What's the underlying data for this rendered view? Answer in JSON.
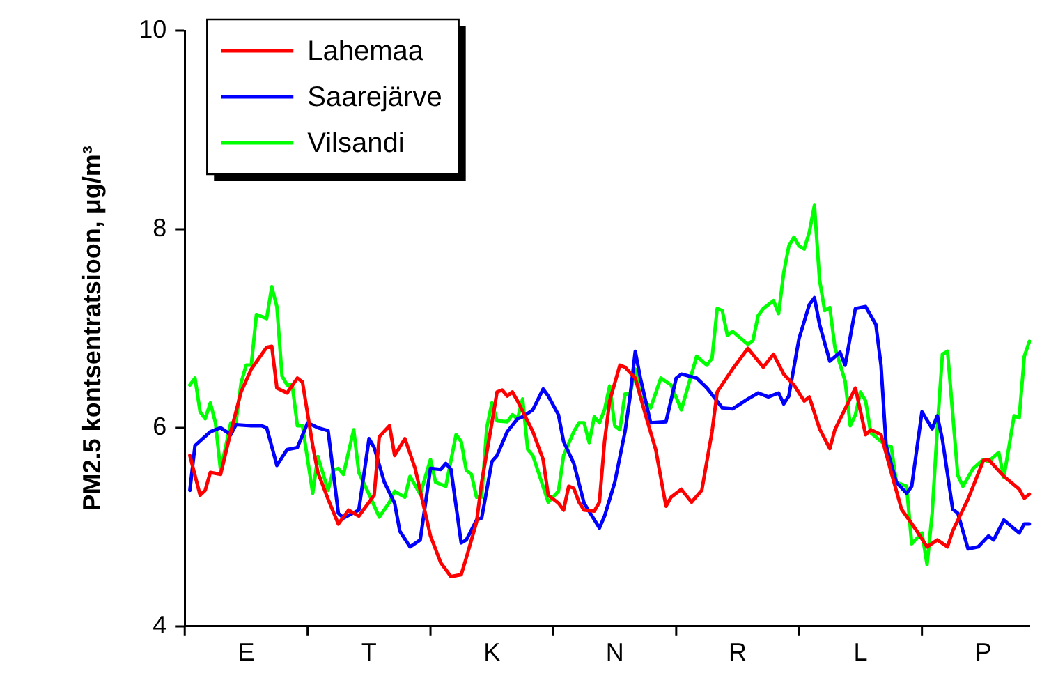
{
  "chart_data": {
    "type": "line",
    "ylabel": "PM2.5 kontsentratsioon, μg/m³",
    "categories": [
      null,
      null,
      null,
      null,
      null,
      null,
      null,
      null,
      null,
      null,
      null,
      null,
      "E",
      null,
      null,
      null,
      null,
      null,
      null,
      null,
      null,
      null,
      null,
      null,
      null,
      null,
      null,
      null,
      null,
      null,
      null,
      null,
      null,
      null,
      null,
      null,
      "T",
      null,
      null,
      null,
      null,
      null,
      null,
      null,
      null,
      null,
      null,
      null,
      null,
      null,
      null,
      null,
      null,
      null,
      null,
      null,
      null,
      null,
      null,
      null,
      "K",
      null,
      null,
      null,
      null,
      null,
      null,
      null,
      null,
      null,
      null,
      null,
      null,
      null,
      null,
      null,
      null,
      null,
      null,
      null,
      null,
      null,
      null,
      null,
      "N",
      null,
      null,
      null,
      null,
      null,
      null,
      null,
      null,
      null,
      null,
      null,
      null,
      null,
      null,
      null,
      null,
      null,
      null,
      null,
      null,
      null,
      null,
      null,
      "R",
      null,
      null,
      null,
      null,
      null,
      null,
      null,
      null,
      null,
      null,
      null,
      null,
      null,
      null,
      null,
      null,
      null,
      null,
      null,
      null,
      null,
      null,
      null,
      "L",
      null,
      null,
      null,
      null,
      null,
      null,
      null,
      null,
      null,
      null,
      null,
      null,
      null,
      null,
      null,
      null,
      null,
      null,
      null,
      null,
      null,
      null,
      null,
      "P",
      null,
      null,
      null,
      null,
      null,
      null,
      null,
      null,
      null
    ],
    "ylim": [
      4,
      10
    ],
    "yticks": [
      4,
      6,
      8,
      10
    ],
    "legend": "top left",
    "marker": "none",
    "line_style": "solid",
    "series": [
      {
        "name": "Lahemaa",
        "color": "#ff0000",
        "values": [
          null,
          5.72,
          null,
          5.32,
          5.37,
          5.55,
          null,
          5.53,
          null,
          5.96,
          null,
          6.36,
          null,
          6.59,
          null,
          null,
          6.81,
          6.82,
          6.4,
          null,
          6.35,
          null,
          6.5,
          6.46,
          null,
          5.82,
          5.55,
          null,
          5.28,
          null,
          5.03,
          null,
          5.17,
          null,
          5.11,
          null,
          null,
          5.32,
          5.91,
          null,
          6.02,
          5.72,
          null,
          5.89,
          null,
          5.59,
          null,
          null,
          4.91,
          null,
          4.64,
          null,
          4.5,
          null,
          4.52,
          4.69,
          null,
          5.05,
          5.45,
          null,
          6.05,
          6.36,
          6.38,
          6.32,
          6.36,
          6.27,
          null,
          null,
          5.96,
          null,
          5.68,
          5.32,
          null,
          5.24,
          5.17,
          5.41,
          5.39,
          5.25,
          5.17,
          null,
          5.16,
          5.25,
          5.86,
          6.27,
          null,
          6.63,
          6.61,
          null,
          6.5,
          null,
          6.13,
          null,
          5.78,
          null,
          5.21,
          5.3,
          null,
          5.38,
          null,
          5.25,
          null,
          5.37,
          null,
          5.96,
          6.36,
          null,
          null,
          6.59,
          null,
          null,
          6.8,
          null,
          null,
          6.61,
          null,
          6.74,
          null,
          6.54,
          null,
          6.43,
          null,
          6.27,
          6.31,
          null,
          5.99,
          null,
          5.79,
          5.98,
          null,
          null,
          null,
          6.4,
          null,
          5.93,
          5.98,
          null,
          5.93,
          null,
          5.55,
          null,
          5.18,
          null,
          null,
          4.96,
          null,
          4.8,
          null,
          4.87,
          null,
          4.8,
          4.96,
          null,
          null,
          5.28,
          null,
          null,
          5.67,
          5.68,
          null,
          null,
          5.51,
          null,
          null,
          5.38,
          5.29,
          5.33
        ]
      },
      {
        "name": "Saarejärve",
        "color": "#0000ff",
        "values": [
          null,
          5.37,
          5.82,
          null,
          null,
          5.96,
          null,
          6.0,
          null,
          5.93,
          6.03,
          null,
          null,
          6.02,
          null,
          6.02,
          6.0,
          null,
          5.62,
          null,
          5.78,
          null,
          5.8,
          null,
          6.05,
          null,
          6.0,
          null,
          5.97,
          null,
          5.14,
          5.09,
          null,
          null,
          5.17,
          null,
          5.89,
          5.8,
          null,
          5.45,
          null,
          5.24,
          4.96,
          null,
          4.8,
          null,
          4.87,
          null,
          5.59,
          null,
          5.58,
          5.64,
          5.58,
          null,
          4.84,
          4.87,
          null,
          5.07,
          5.09,
          null,
          5.66,
          5.72,
          null,
          5.96,
          null,
          6.09,
          6.11,
          null,
          6.18,
          null,
          6.39,
          6.32,
          null,
          6.13,
          5.86,
          null,
          5.64,
          null,
          5.24,
          null,
          null,
          4.99,
          5.11,
          null,
          5.45,
          null,
          5.96,
          6.32,
          6.77,
          6.5,
          null,
          6.05,
          null,
          null,
          6.06,
          null,
          6.5,
          6.54,
          null,
          null,
          6.5,
          null,
          6.4,
          null,
          null,
          6.2,
          null,
          6.19,
          null,
          null,
          6.29,
          null,
          6.35,
          null,
          6.31,
          null,
          6.35,
          6.24,
          6.32,
          null,
          6.9,
          null,
          7.24,
          7.31,
          7.04,
          null,
          6.67,
          null,
          6.76,
          6.63,
          null,
          7.2,
          null,
          7.22,
          null,
          7.04,
          6.63,
          5.82,
          null,
          5.45,
          null,
          5.34,
          5.41,
          null,
          6.16,
          null,
          5.99,
          6.12,
          5.88,
          null,
          5.18,
          5.14,
          null,
          4.78,
          null,
          4.8,
          null,
          4.91,
          4.87,
          null,
          5.07,
          null,
          null,
          4.94,
          5.03,
          5.03
        ]
      },
      {
        "name": "Vilsandi",
        "color": "#00ff00",
        "values": [
          null,
          6.43,
          6.5,
          6.16,
          6.09,
          6.25,
          6.05,
          5.57,
          null,
          6.05,
          6.05,
          6.45,
          6.63,
          6.63,
          7.14,
          null,
          7.1,
          7.42,
          7.22,
          6.52,
          6.43,
          6.43,
          6.02,
          6.02,
          null,
          5.34,
          5.71,
          null,
          5.37,
          5.57,
          5.59,
          5.53,
          null,
          5.98,
          5.55,
          null,
          5.33,
          null,
          5.1,
          null,
          5.25,
          5.36,
          null,
          5.3,
          5.51,
          null,
          5.33,
          null,
          5.68,
          5.45,
          null,
          5.41,
          null,
          5.93,
          5.86,
          5.57,
          5.53,
          5.3,
          5.3,
          6.0,
          6.25,
          6.07,
          null,
          6.06,
          6.13,
          6.09,
          6.29,
          5.78,
          5.72,
          null,
          null,
          5.25,
          null,
          5.36,
          5.72,
          null,
          5.96,
          6.05,
          6.05,
          5.85,
          6.11,
          6.05,
          6.18,
          6.42,
          6.02,
          5.98,
          6.34,
          6.34,
          6.59,
          6.32,
          null,
          6.2,
          null,
          6.5,
          null,
          6.43,
          null,
          6.18,
          null,
          null,
          6.72,
          null,
          6.63,
          6.7,
          7.2,
          7.18,
          6.93,
          6.97,
          null,
          null,
          6.84,
          6.88,
          7.13,
          7.2,
          null,
          7.28,
          7.15,
          7.56,
          7.83,
          7.92,
          7.83,
          7.8,
          7.97,
          8.24,
          7.49,
          7.18,
          7.21,
          6.81,
          null,
          6.47,
          6.02,
          6.13,
          6.36,
          6.27,
          5.95,
          null,
          null,
          5.82,
          5.81,
          5.45,
          null,
          5.41,
          4.83,
          null,
          4.94,
          4.62,
          5.14,
          5.99,
          6.74,
          6.77,
          null,
          5.52,
          5.41,
          null,
          5.59,
          null,
          5.68,
          5.66,
          null,
          5.75,
          5.5,
          null,
          6.12,
          6.1,
          6.72,
          6.87
        ]
      }
    ]
  }
}
